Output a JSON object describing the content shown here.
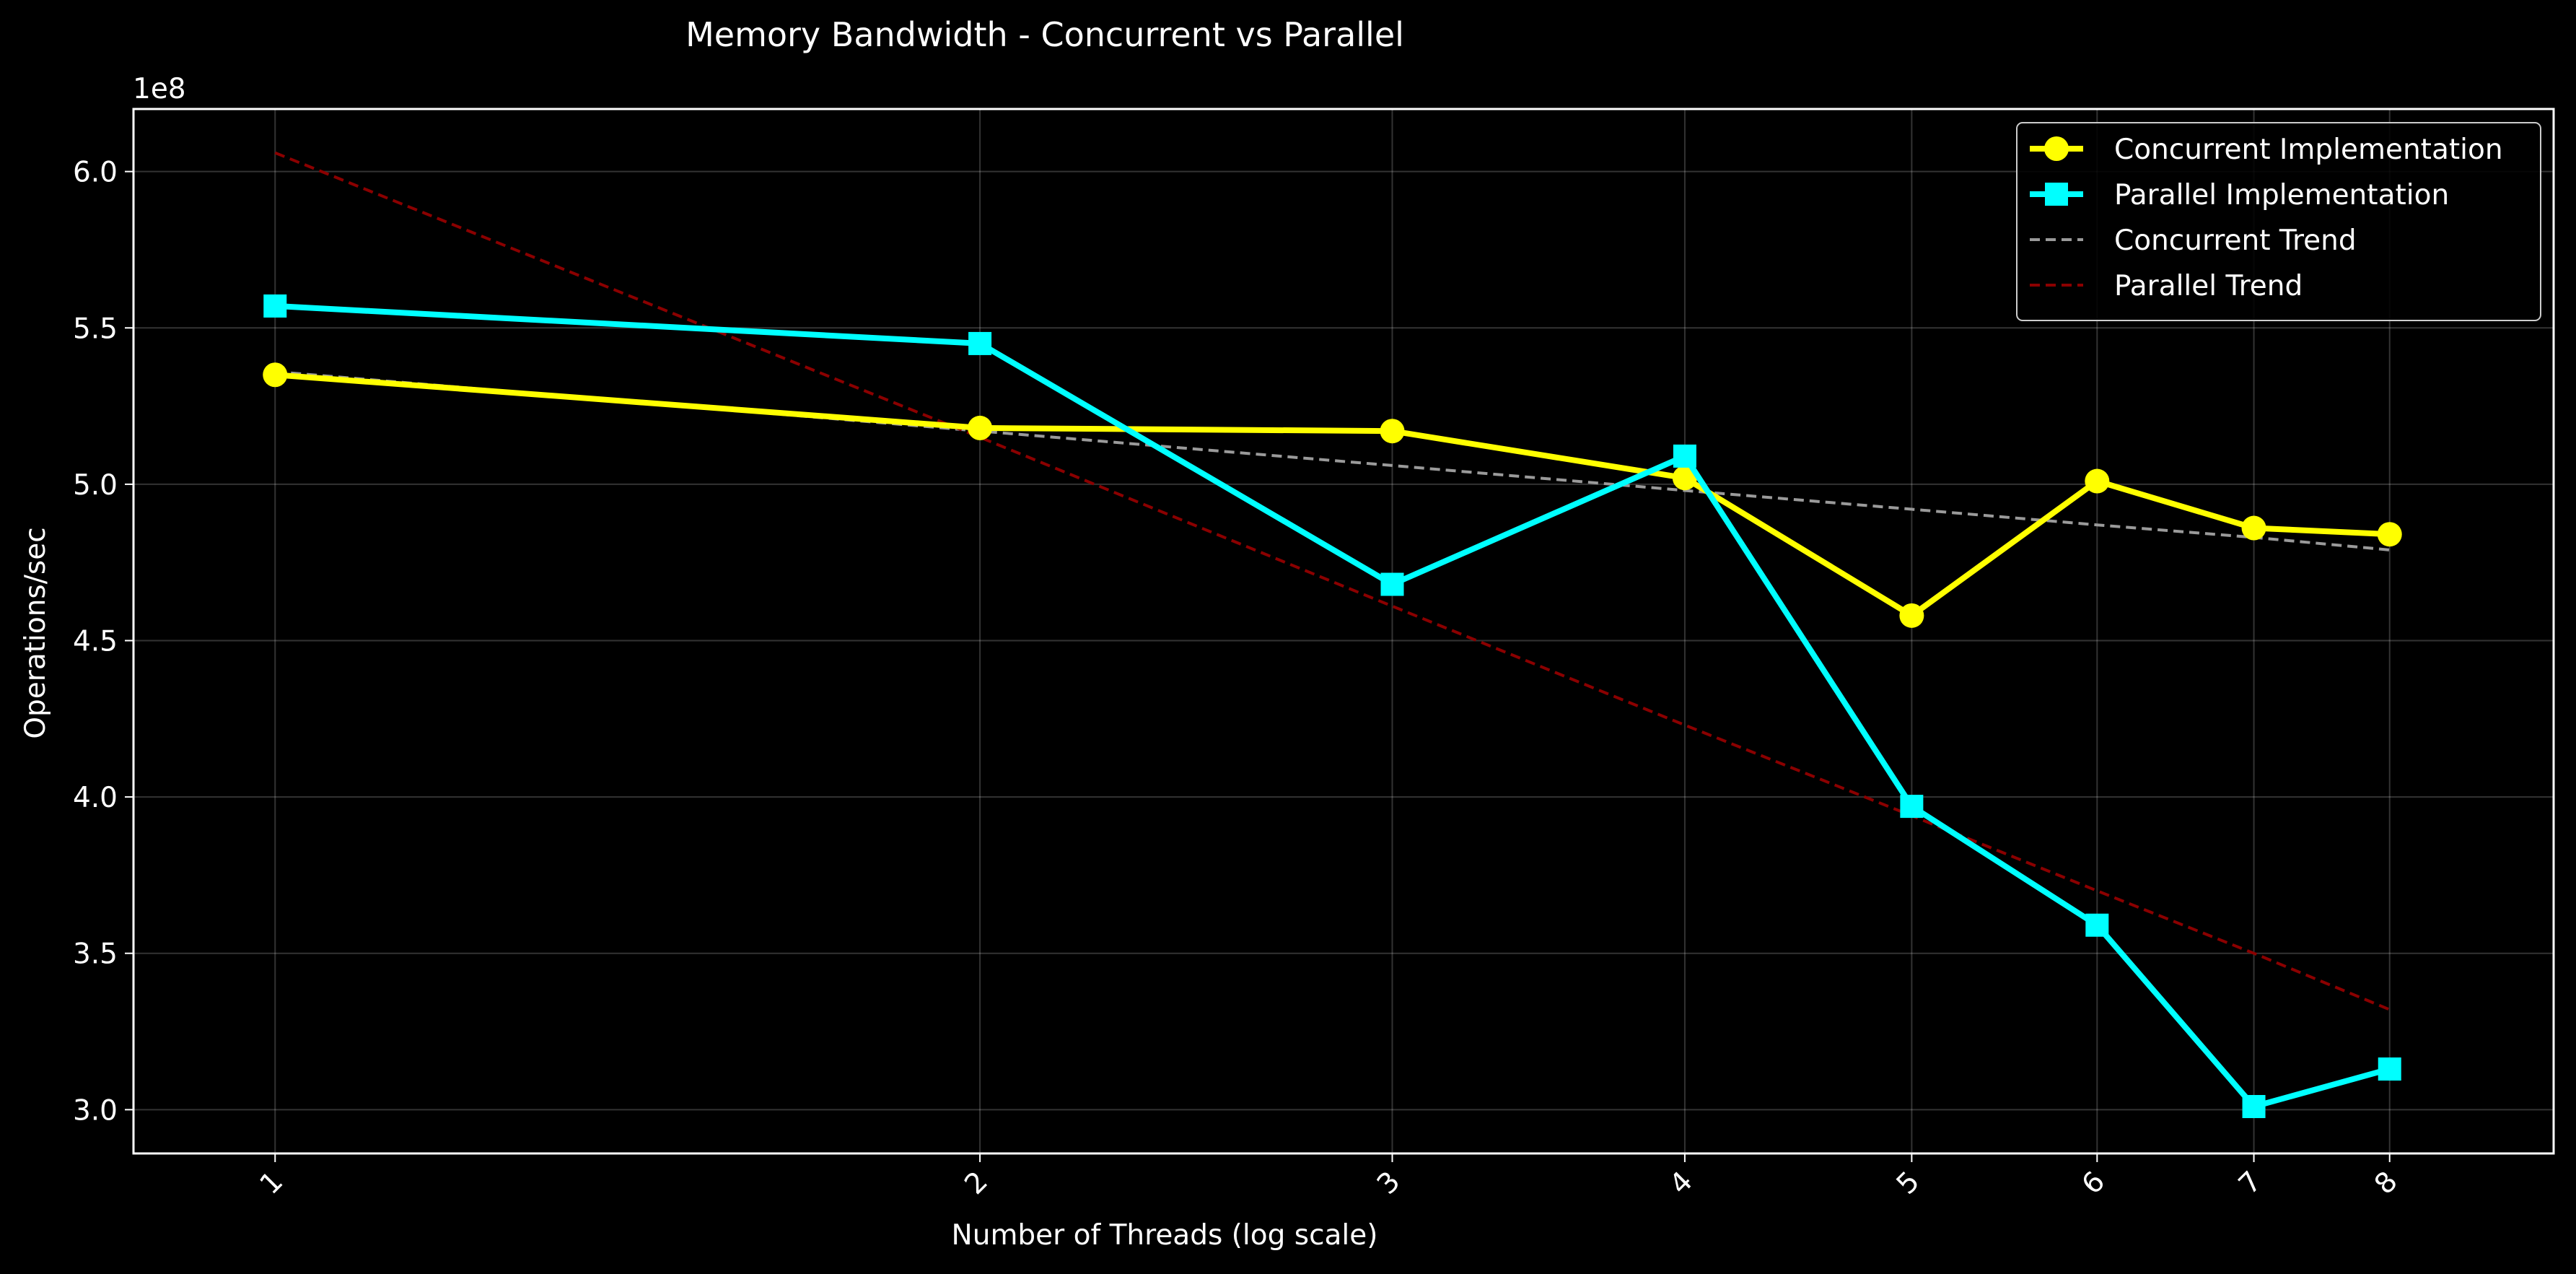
{
  "chart_data": {
    "type": "line",
    "title": "Memory Bandwidth - Concurrent vs Parallel",
    "xlabel": "Number of Threads (log scale)",
    "ylabel": "Operations/sec",
    "y_offset_label": "1e8",
    "x_scale": "log",
    "x": [
      1,
      2,
      3,
      4,
      5,
      6,
      7,
      8
    ],
    "x_tick_labels": [
      "1",
      "2",
      "3",
      "4",
      "5",
      "6",
      "7",
      "8"
    ],
    "y_ticks": [
      3.0,
      3.5,
      4.0,
      4.5,
      5.0,
      5.5,
      6.0
    ],
    "y_tick_labels": [
      "3.0",
      "3.5",
      "4.0",
      "4.5",
      "5.0",
      "5.5",
      "6.0"
    ],
    "xlim": [
      0.87,
      9.4
    ],
    "ylim": [
      2.86,
      6.2
    ],
    "grid": true,
    "legend_position": "top-right",
    "series": [
      {
        "name": "Concurrent Implementation",
        "color": "#ffff00",
        "style": "solid",
        "marker": "circle",
        "values": [
          5.35,
          5.18,
          5.17,
          5.02,
          4.58,
          5.01,
          4.86,
          4.84
        ]
      },
      {
        "name": "Parallel Implementation",
        "color": "#00ffff",
        "style": "solid",
        "marker": "square",
        "values": [
          5.57,
          5.45,
          4.68,
          5.09,
          3.97,
          3.59,
          3.01,
          3.13
        ]
      },
      {
        "name": "Concurrent Trend",
        "color": "#9a9a9a",
        "style": "dashed",
        "marker": "none",
        "values": [
          5.36,
          5.17,
          5.06,
          4.98,
          4.92,
          4.87,
          4.83,
          4.79
        ]
      },
      {
        "name": "Parallel Trend",
        "color": "#8b0000",
        "style": "dashed",
        "marker": "none",
        "values": [
          6.06,
          5.15,
          4.61,
          4.23,
          3.94,
          3.7,
          3.5,
          3.32
        ]
      }
    ]
  }
}
